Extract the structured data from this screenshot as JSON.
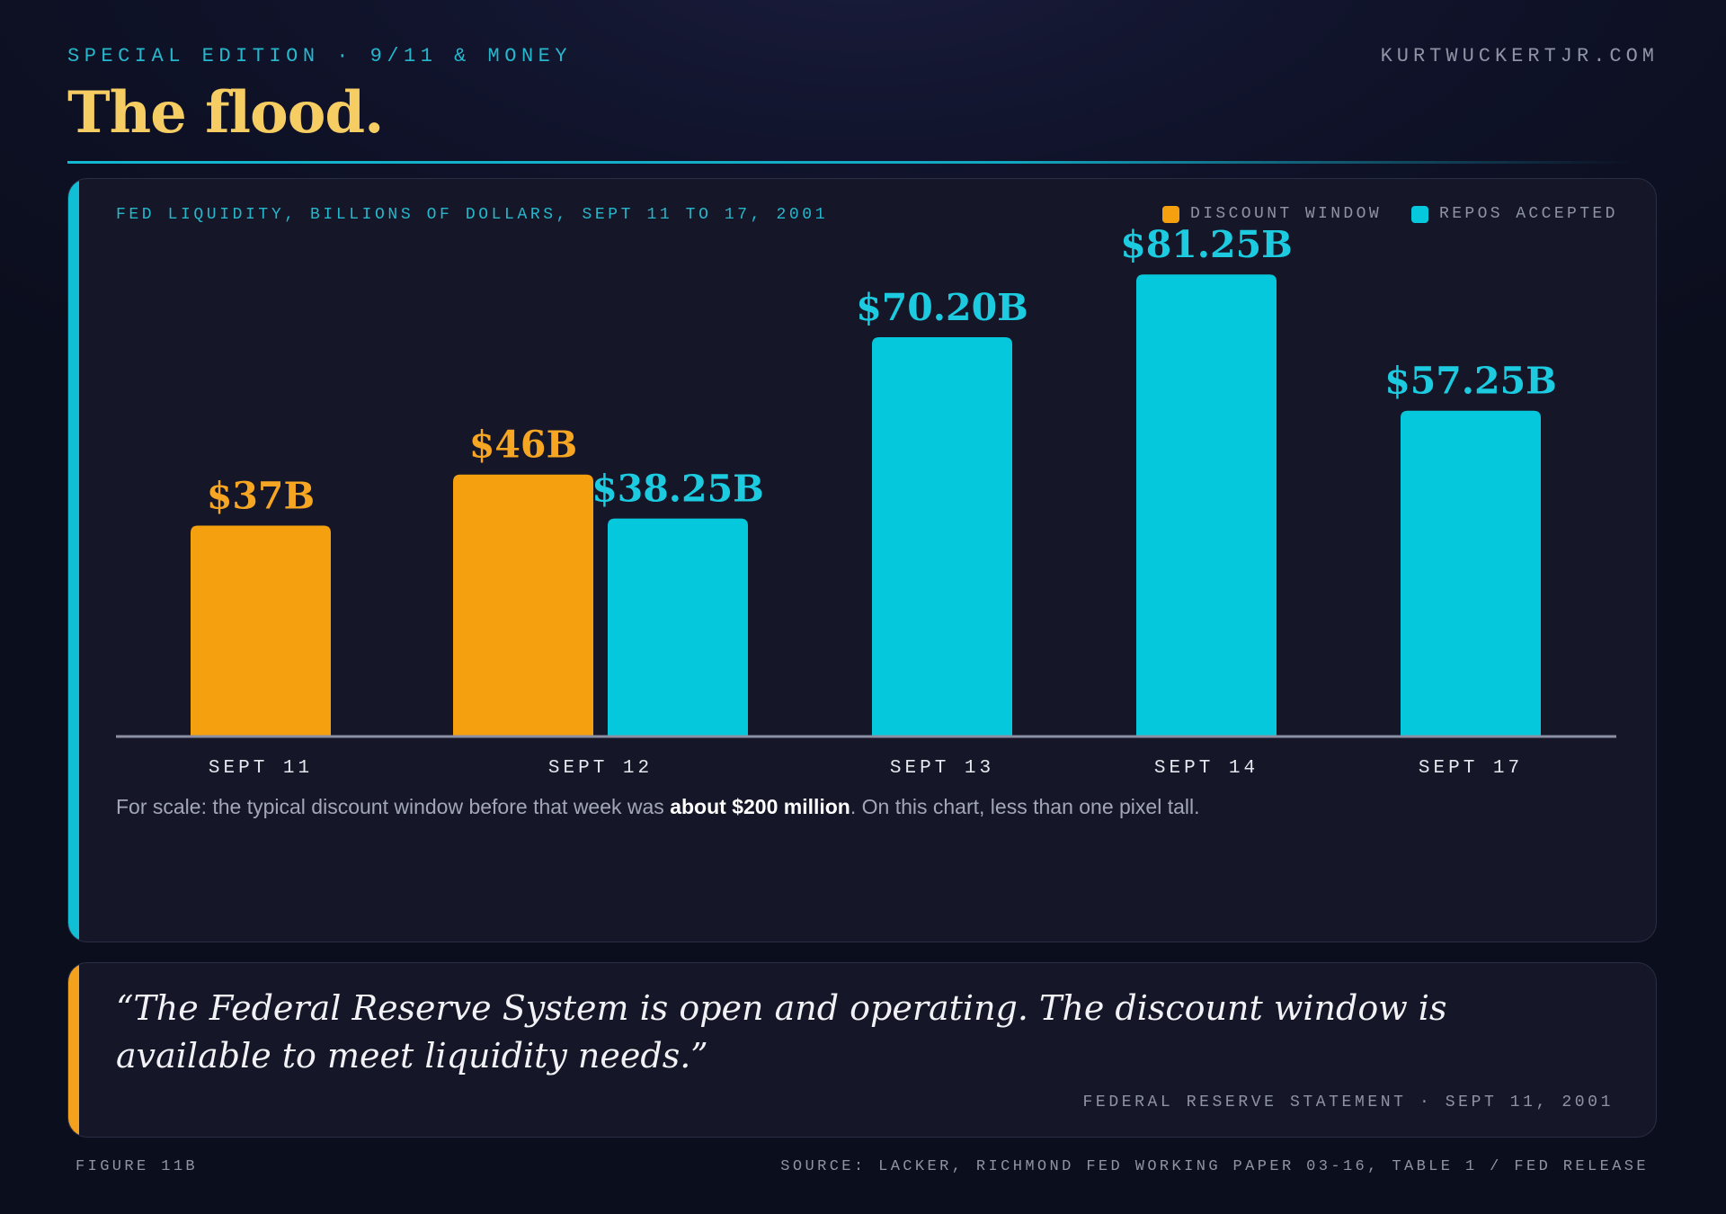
{
  "header": {
    "kicker": "SPECIAL EDITION · 9/11 & MONEY",
    "site": "KURTWUCKERTJR.COM",
    "title": "The flood."
  },
  "chart_data": {
    "type": "bar",
    "title": "FED LIQUIDITY, BILLIONS OF DOLLARS, SEPT 11 TO 17, 2001",
    "categories": [
      "SEPT 11",
      "SEPT 12",
      "SEPT 13",
      "SEPT 14",
      "SEPT 17"
    ],
    "series": [
      {
        "name": "DISCOUNT WINDOW",
        "color": "#f4a00f",
        "values": [
          37,
          46,
          null,
          null,
          null
        ],
        "labels": [
          "$37B",
          "$46B",
          null,
          null,
          null
        ]
      },
      {
        "name": "REPOS ACCEPTED",
        "color": "#06c8dc",
        "values": [
          null,
          38.25,
          70.2,
          81.25,
          57.25
        ],
        "labels": [
          null,
          "$38.25B",
          "$70.20B",
          "$81.25B",
          "$57.25B"
        ]
      }
    ],
    "ylim": [
      0,
      90
    ],
    "grid": false,
    "legend": "top-right"
  },
  "note": {
    "before": "For scale: the typical discount window before that week was ",
    "bold": "about $200 million",
    "after": ". On this chart, less than one pixel tall."
  },
  "quote": {
    "text": "“The Federal Reserve System is open and operating. The discount window is available to meet liquidity needs.”",
    "attribution": "FEDERAL RESERVE STATEMENT · SEPT 11, 2001"
  },
  "footer": {
    "figure": "FIGURE 11B",
    "source": "SOURCE: LACKER, RICHMOND FED WORKING PAPER 03-16, TABLE 1 / FED RELEASE"
  }
}
